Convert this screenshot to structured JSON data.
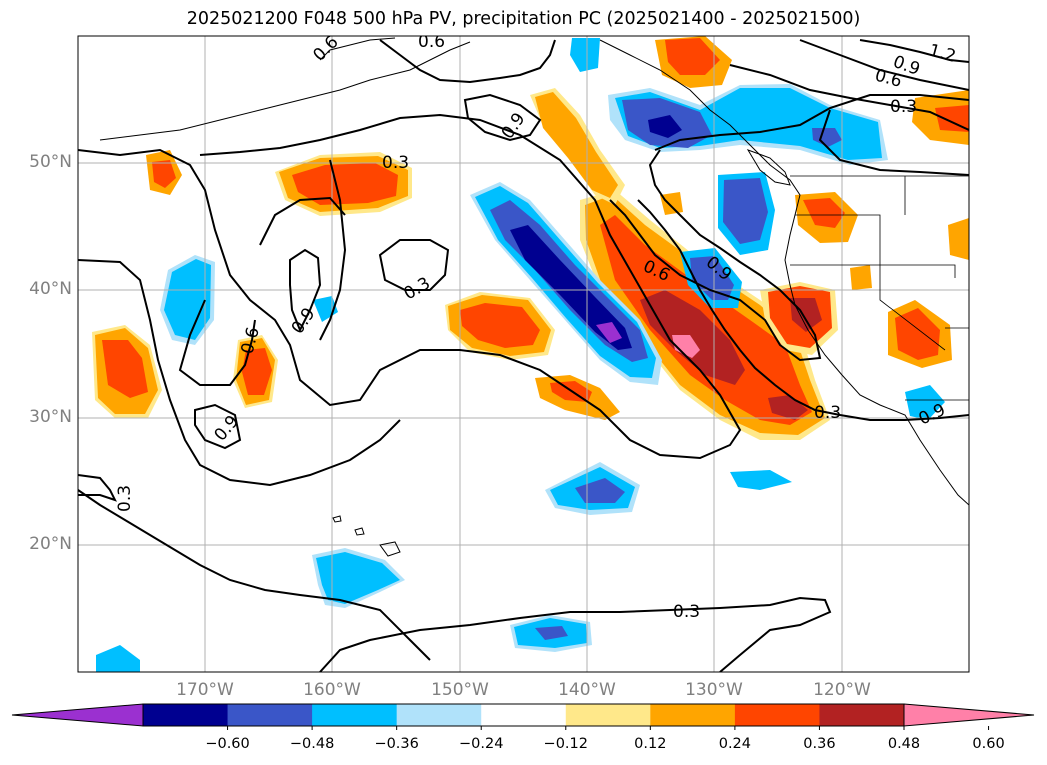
{
  "title": "2025021200 F048 500 hPa PV, precipitation PC (2025021400 - 2025021500)",
  "map": {
    "lon_range": [
      -180,
      -110
    ],
    "lat_range": [
      10,
      60
    ],
    "lat_ticks": [
      "50°N",
      "40°N",
      "30°N",
      "20°N"
    ],
    "lon_ticks": [
      "170°W",
      "160°W",
      "150°W",
      "140°W",
      "130°W",
      "120°W"
    ],
    "contour_labels": [
      "1.2",
      "0.9",
      "0.6",
      "0.3",
      "0.9",
      "0.6",
      "0.9",
      "0.3",
      "0.3",
      "0.9",
      "0.6",
      "0.6",
      "0.6",
      "0.9",
      "0.3",
      "0.9",
      "0.3",
      "0.3"
    ]
  },
  "colorbar": {
    "ticks": [
      "−0.60",
      "−0.48",
      "−0.36",
      "−0.24",
      "−0.12",
      "0.12",
      "0.24",
      "0.36",
      "0.48",
      "0.60"
    ],
    "colors": [
      "#9b30d0",
      "#000090",
      "#3a56c8",
      "#00bfff",
      "#b0e2fa",
      "#ffffff",
      "#ffe88a",
      "#ffa500",
      "#ff4500",
      "#b22222",
      "#ff80a8"
    ]
  },
  "chart_data": {
    "type": "map",
    "title": "2025021200 F048 500 hPa PV, precipitation PC (2025021400 - 2025021500)",
    "contour_levels": [
      0.3,
      0.6,
      0.9,
      1.2
    ],
    "colorbar_levels": [
      -0.6,
      -0.48,
      -0.36,
      -0.24,
      -0.12,
      0.12,
      0.24,
      0.36,
      0.48,
      0.6
    ],
    "grid": true
  }
}
